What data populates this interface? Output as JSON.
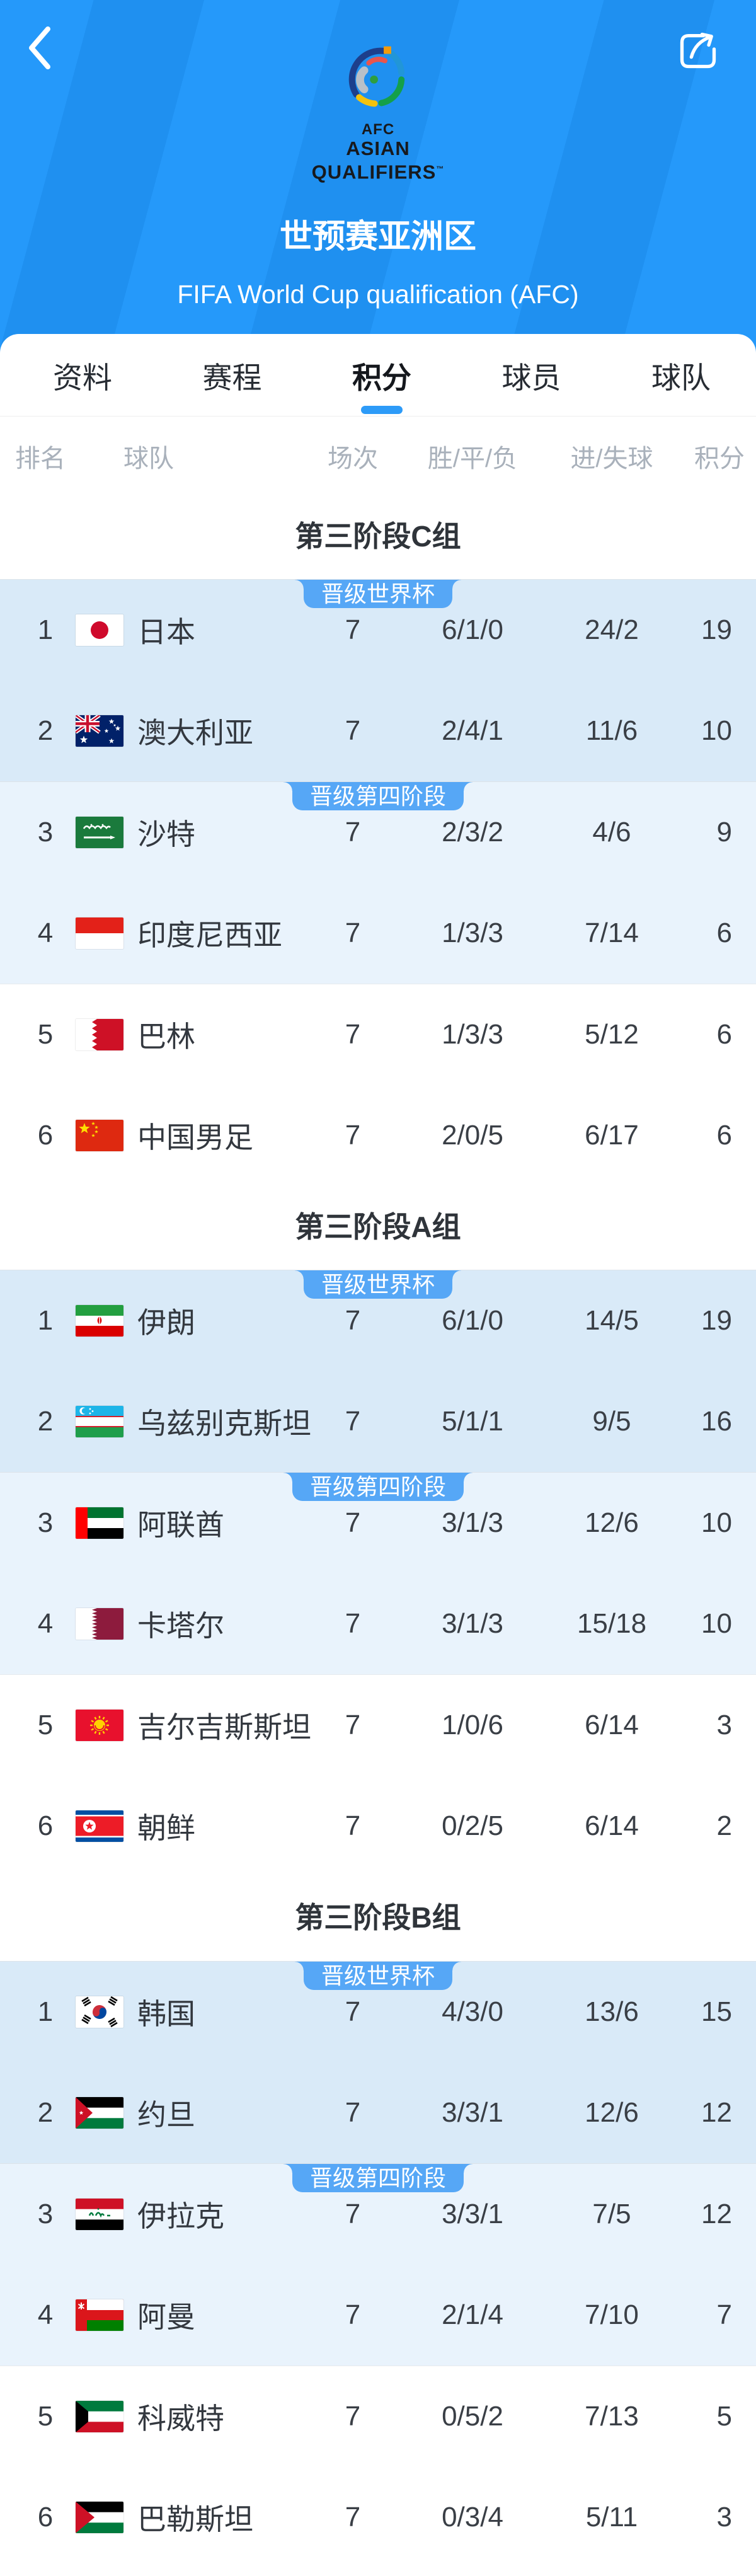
{
  "colors": {
    "header_blue": "#2599FA",
    "header_blue_dark": "#1F90F0",
    "accent": "#2D9BF8",
    "badge": "#56A7F6",
    "zone_worldcup_bg": "#D9EAF8",
    "zone_fourth_bg": "#E9F3FC",
    "title_text": "#2F343A",
    "muted_text": "#A9B1BB"
  },
  "header": {
    "back_icon": "chevron-left-icon",
    "share_icon": "share-icon",
    "logo": {
      "line1": "AFC",
      "line2": "ASIAN",
      "line3": "QUALIFIERS",
      "tm": "™"
    },
    "title": "世预赛亚洲区",
    "subtitle": "FIFA World Cup qualification (AFC)"
  },
  "tabs": [
    {
      "label": "资料",
      "active": false
    },
    {
      "label": "赛程",
      "active": false
    },
    {
      "label": "积分",
      "active": true
    },
    {
      "label": "球员",
      "active": false
    },
    {
      "label": "球队",
      "active": false
    }
  ],
  "table_header": {
    "rank": "排名",
    "team": "球队",
    "played": "场次",
    "wdl": "胜/平/负",
    "goals": "进/失球",
    "points": "积分"
  },
  "badges": {
    "world_cup": "晋级世界杯",
    "fourth_stage": "晋级第四阶段"
  },
  "groups": [
    {
      "title": "第三阶段C组",
      "teams": [
        {
          "rank": "1",
          "name": "日本",
          "flag": "jp",
          "played": "7",
          "wdl": "6/1/0",
          "goals": "24/2",
          "points": "19"
        },
        {
          "rank": "2",
          "name": "澳大利亚",
          "flag": "au",
          "played": "7",
          "wdl": "2/4/1",
          "goals": "11/6",
          "points": "10"
        },
        {
          "rank": "3",
          "name": "沙特",
          "flag": "sa",
          "played": "7",
          "wdl": "2/3/2",
          "goals": "4/6",
          "points": "9"
        },
        {
          "rank": "4",
          "name": "印度尼西亚",
          "flag": "id",
          "played": "7",
          "wdl": "1/3/3",
          "goals": "7/14",
          "points": "6"
        },
        {
          "rank": "5",
          "name": "巴林",
          "flag": "bh",
          "played": "7",
          "wdl": "1/3/3",
          "goals": "5/12",
          "points": "6"
        },
        {
          "rank": "6",
          "name": "中国男足",
          "flag": "cn",
          "played": "7",
          "wdl": "2/0/5",
          "goals": "6/17",
          "points": "6"
        }
      ]
    },
    {
      "title": "第三阶段A组",
      "teams": [
        {
          "rank": "1",
          "name": "伊朗",
          "flag": "ir",
          "played": "7",
          "wdl": "6/1/0",
          "goals": "14/5",
          "points": "19"
        },
        {
          "rank": "2",
          "name": "乌兹别克斯坦",
          "flag": "uz",
          "played": "7",
          "wdl": "5/1/1",
          "goals": "9/5",
          "points": "16"
        },
        {
          "rank": "3",
          "name": "阿联酋",
          "flag": "ae",
          "played": "7",
          "wdl": "3/1/3",
          "goals": "12/6",
          "points": "10"
        },
        {
          "rank": "4",
          "name": "卡塔尔",
          "flag": "qa",
          "played": "7",
          "wdl": "3/1/3",
          "goals": "15/18",
          "points": "10"
        },
        {
          "rank": "5",
          "name": "吉尔吉斯斯坦",
          "flag": "kg",
          "played": "7",
          "wdl": "1/0/6",
          "goals": "6/14",
          "points": "3"
        },
        {
          "rank": "6",
          "name": "朝鲜",
          "flag": "kp",
          "played": "7",
          "wdl": "0/2/5",
          "goals": "6/14",
          "points": "2"
        }
      ]
    },
    {
      "title": "第三阶段B组",
      "teams": [
        {
          "rank": "1",
          "name": "韩国",
          "flag": "kr",
          "played": "7",
          "wdl": "4/3/0",
          "goals": "13/6",
          "points": "15"
        },
        {
          "rank": "2",
          "name": "约旦",
          "flag": "jo",
          "played": "7",
          "wdl": "3/3/1",
          "goals": "12/6",
          "points": "12"
        },
        {
          "rank": "3",
          "name": "伊拉克",
          "flag": "iq",
          "played": "7",
          "wdl": "3/3/1",
          "goals": "7/5",
          "points": "12"
        },
        {
          "rank": "4",
          "name": "阿曼",
          "flag": "om",
          "played": "7",
          "wdl": "2/1/4",
          "goals": "7/10",
          "points": "7"
        },
        {
          "rank": "5",
          "name": "科威特",
          "flag": "kw",
          "played": "7",
          "wdl": "0/5/2",
          "goals": "7/13",
          "points": "5"
        },
        {
          "rank": "6",
          "name": "巴勒斯坦",
          "flag": "ps",
          "played": "7",
          "wdl": "0/3/4",
          "goals": "5/11",
          "points": "3"
        }
      ]
    }
  ]
}
